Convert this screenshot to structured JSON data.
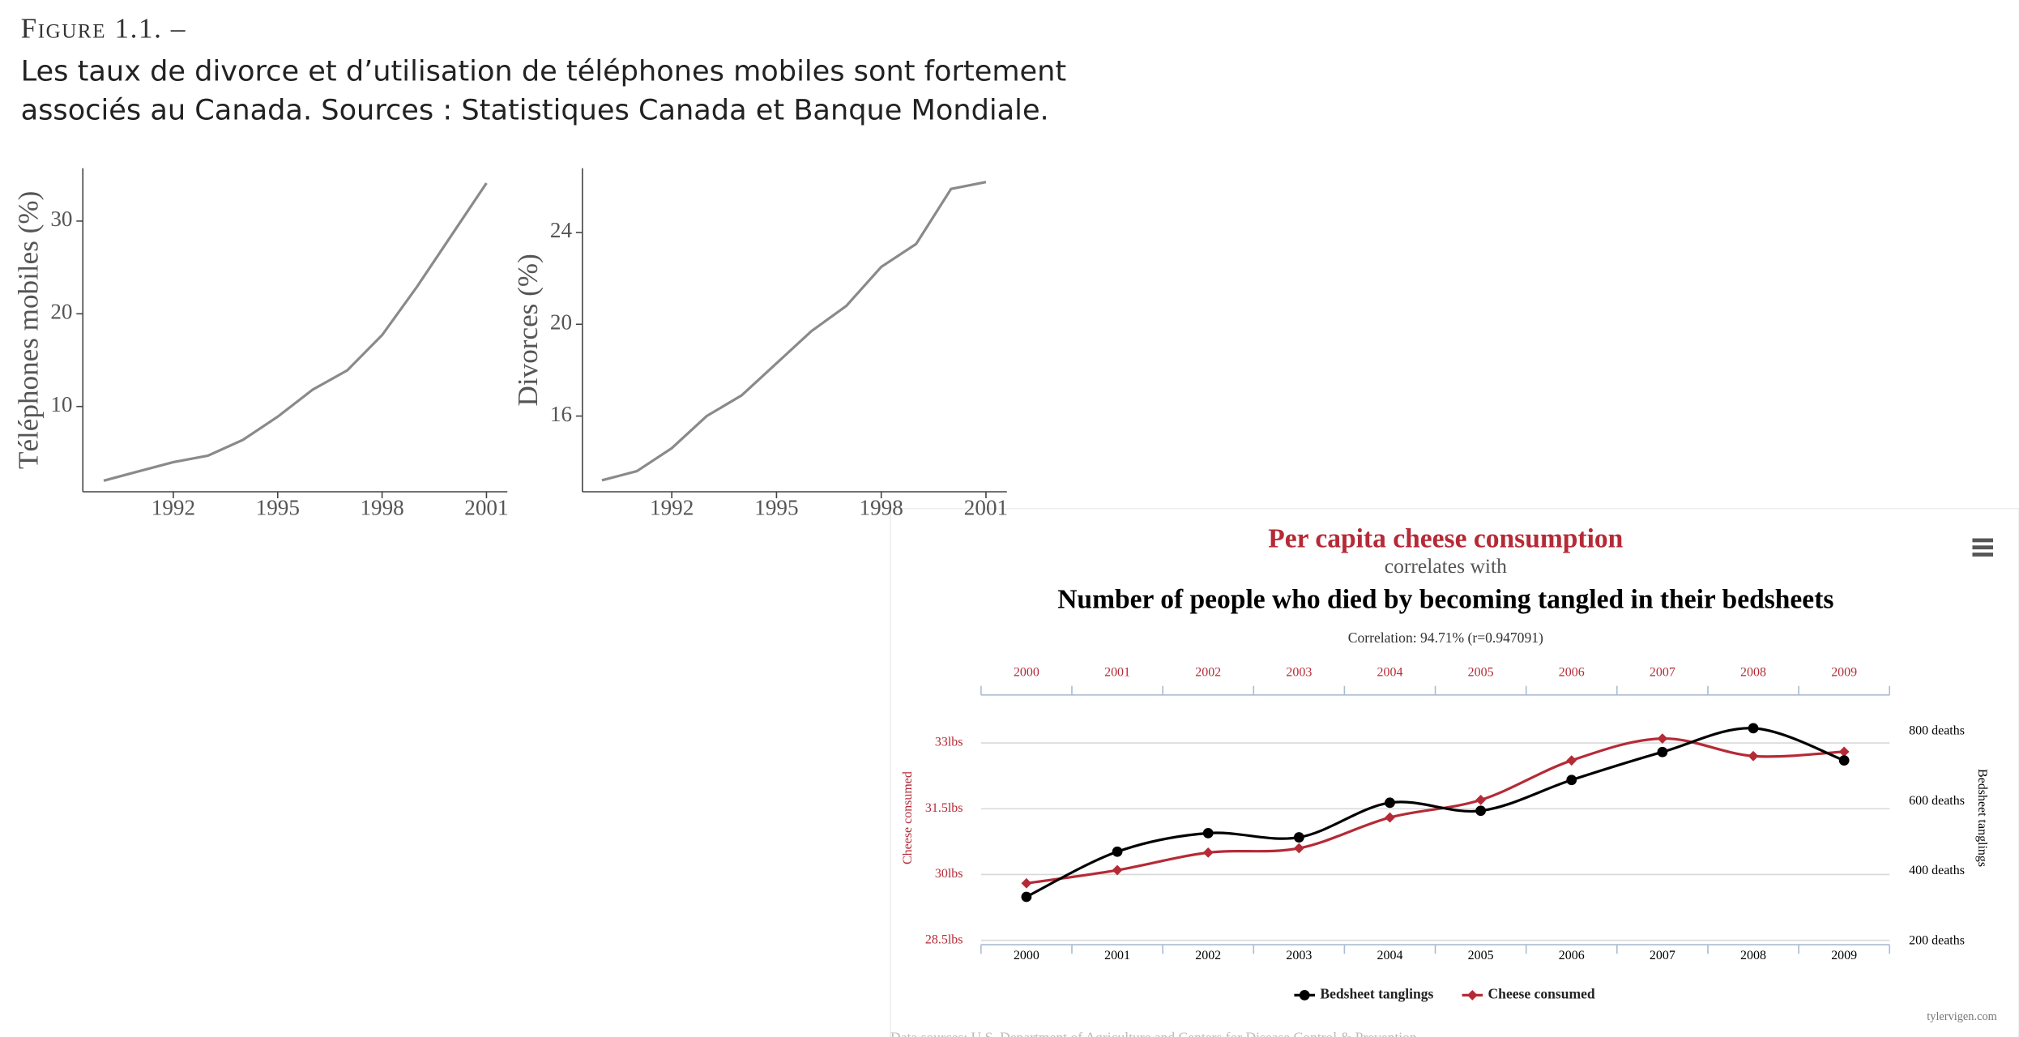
{
  "figure": {
    "label": "Figure 1.1. –",
    "caption": [
      "Les taux de divorce et d’utilisation de téléphones mobiles sont fortement",
      "associés au Canada. Sources : Statistiques Canada et Banque Mondiale."
    ]
  },
  "chart_data": [
    {
      "type": "line",
      "ylabel": "Téléphones mobiles (%)",
      "x": [
        1990,
        1991,
        1992,
        1993,
        1994,
        1995,
        1996,
        1997,
        1998,
        1999,
        2000,
        2001
      ],
      "values": [
        2.0,
        3.0,
        4.0,
        4.7,
        6.4,
        8.9,
        11.8,
        13.9,
        17.7,
        22.9,
        28.5,
        34.1
      ],
      "color": "#8a8a8a",
      "xlim": [
        1989.4,
        2001.6
      ],
      "ylim": [
        0.8,
        35.7
      ],
      "xticks": [
        1992,
        1995,
        1998,
        2001
      ],
      "yticks": [
        10,
        20,
        30
      ]
    },
    {
      "type": "line",
      "ylabel": "Divorces (%)",
      "x": [
        1990,
        1991,
        1992,
        1993,
        1994,
        1995,
        1996,
        1997,
        1998,
        1999,
        2000,
        2001
      ],
      "values": [
        13.2,
        13.6,
        14.6,
        16.0,
        16.9,
        18.3,
        19.7,
        20.8,
        22.5,
        23.5,
        25.9,
        26.2
      ],
      "color": "#8a8a8a",
      "xlim": [
        1989.44,
        2001.6
      ],
      "ylim": [
        12.7,
        26.8
      ],
      "xticks": [
        1992,
        1995,
        1998,
        2001
      ],
      "yticks": [
        16,
        20,
        24
      ]
    },
    {
      "type": "dual-line",
      "title": "Per capita cheese consumption",
      "subtitle": "correlates with",
      "title2": "Number of people who died by becoming tangled in their bedsheets",
      "annotation": "Correlation: 94.71% (r=0.947091)",
      "ylabel": "Cheese consumed",
      "y2label": "Bedsheet tanglings",
      "categories": [
        "2000",
        "2001",
        "2002",
        "2003",
        "2004",
        "2005",
        "2006",
        "2007",
        "2008",
        "2009"
      ],
      "series": [
        {
          "name": "Bedsheet tanglings",
          "color": "#000000",
          "axis": "y2",
          "marker": "circle",
          "values": [
            327,
            456,
            509,
            497,
            596,
            573,
            661,
            741,
            809,
            717
          ]
        },
        {
          "name": "Cheese consumed",
          "color": "#b52a36",
          "axis": "y",
          "marker": "diamond",
          "values": [
            29.8,
            30.1,
            30.5,
            30.6,
            31.3,
            31.7,
            32.6,
            33.1,
            32.7,
            32.8
          ]
        }
      ],
      "ylim": [
        28.4,
        34.3
      ],
      "y2lim": [
        190,
        930
      ],
      "yticks": [
        {
          "value": 28.5,
          "label": "28.5lbs"
        },
        {
          "value": 30,
          "label": "30lbs"
        },
        {
          "value": 31.5,
          "label": "31.5lbs"
        },
        {
          "value": 33,
          "label": "33lbs"
        }
      ],
      "y2ticks": [
        {
          "value": 200,
          "label": "200 deaths"
        },
        {
          "value": 400,
          "label": "400 deaths"
        },
        {
          "value": 600,
          "label": "600 deaths"
        },
        {
          "value": 800,
          "label": "800 deaths"
        }
      ],
      "grid": true,
      "legend": "bottom",
      "credit": "tylervigen.com",
      "source": "Data sources: U.S. Department of Agriculture and Centers for Disease Control & Prevention"
    }
  ]
}
